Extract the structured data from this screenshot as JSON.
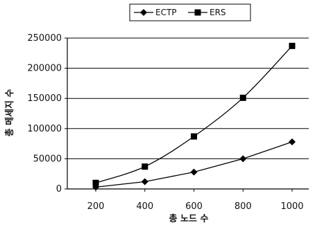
{
  "chart_data": {
    "type": "line",
    "xlabel": "총 노드 수",
    "ylabel": "총 메세지 수",
    "x": [
      200,
      400,
      600,
      800,
      1000
    ],
    "xticks": [
      "200",
      "400",
      "600",
      "800",
      "1000"
    ],
    "yticks": [
      "0",
      "50000",
      "100000",
      "150000",
      "200000",
      "250000"
    ],
    "ylim": [
      0,
      250000
    ],
    "grid": true,
    "legend_position": "top-center",
    "series": [
      {
        "name": "ECTP",
        "marker": "diamond",
        "values": [
          3000,
          12000,
          28000,
          50000,
          78000
        ]
      },
      {
        "name": "ERS",
        "marker": "square",
        "values": [
          10000,
          37000,
          87000,
          151000,
          237000
        ]
      }
    ]
  }
}
